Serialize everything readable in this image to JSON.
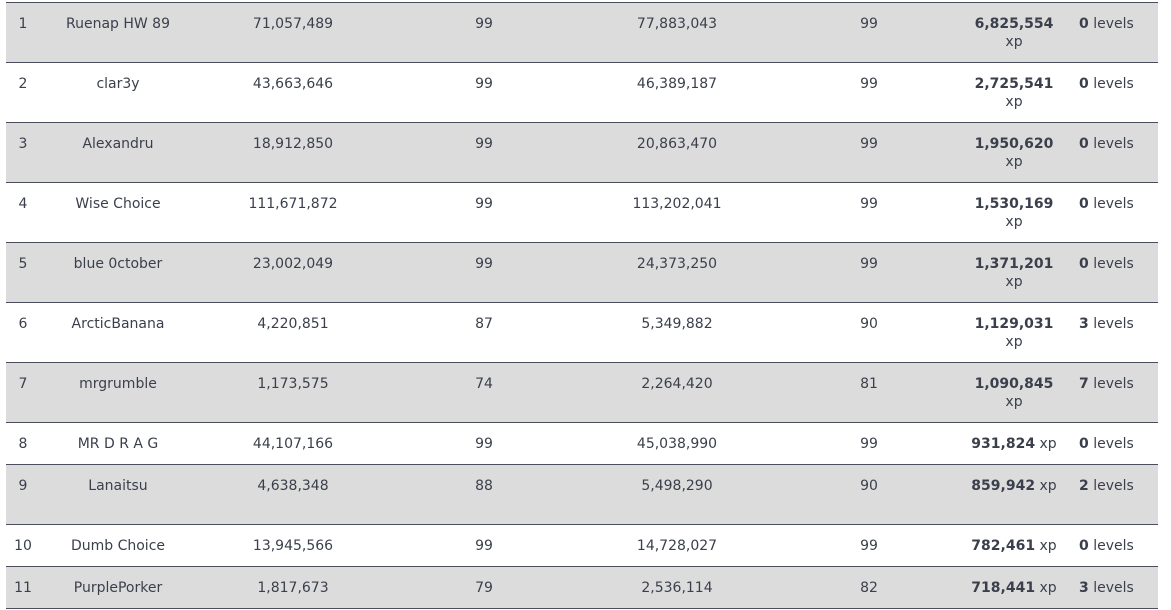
{
  "leaderboard": {
    "xp_unit": "xp",
    "levels_unit": "levels",
    "rows": [
      {
        "rank": "1",
        "name": "Ruenap HW 89",
        "start_xp": "71,057,489",
        "start_level": "99",
        "end_xp": "77,883,043",
        "end_level": "99",
        "gained_xp": "6,825,554",
        "levels_gained": "0"
      },
      {
        "rank": "2",
        "name": "clar3y",
        "start_xp": "43,663,646",
        "start_level": "99",
        "end_xp": "46,389,187",
        "end_level": "99",
        "gained_xp": "2,725,541",
        "levels_gained": "0"
      },
      {
        "rank": "3",
        "name": "Alexandru",
        "start_xp": "18,912,850",
        "start_level": "99",
        "end_xp": "20,863,470",
        "end_level": "99",
        "gained_xp": "1,950,620",
        "levels_gained": "0"
      },
      {
        "rank": "4",
        "name": "Wise Choice",
        "start_xp": "111,671,872",
        "start_level": "99",
        "end_xp": "113,202,041",
        "end_level": "99",
        "gained_xp": "1,530,169",
        "levels_gained": "0"
      },
      {
        "rank": "5",
        "name": "blue 0ctober",
        "start_xp": "23,002,049",
        "start_level": "99",
        "end_xp": "24,373,250",
        "end_level": "99",
        "gained_xp": "1,371,201",
        "levels_gained": "0"
      },
      {
        "rank": "6",
        "name": "ArcticBanana",
        "start_xp": "4,220,851",
        "start_level": "87",
        "end_xp": "5,349,882",
        "end_level": "90",
        "gained_xp": "1,129,031",
        "levels_gained": "3"
      },
      {
        "rank": "7",
        "name": "mrgrumble",
        "start_xp": "1,173,575",
        "start_level": "74",
        "end_xp": "2,264,420",
        "end_level": "81",
        "gained_xp": "1,090,845",
        "levels_gained": "7"
      },
      {
        "rank": "8",
        "name": "MR D R A G",
        "start_xp": "44,107,166",
        "start_level": "99",
        "end_xp": "45,038,990",
        "end_level": "99",
        "gained_xp": "931,824",
        "levels_gained": "0"
      },
      {
        "rank": "9",
        "name": "Lanaitsu",
        "start_xp": "4,638,348",
        "start_level": "88",
        "end_xp": "5,498,290",
        "end_level": "90",
        "gained_xp": "859,942",
        "levels_gained": "2"
      },
      {
        "rank": "10",
        "name": "Dumb Choice",
        "start_xp": "13,945,566",
        "start_level": "99",
        "end_xp": "14,728,027",
        "end_level": "99",
        "gained_xp": "782,461",
        "levels_gained": "0"
      },
      {
        "rank": "11",
        "name": "PurplePorker",
        "start_xp": "1,817,673",
        "start_level": "79",
        "end_xp": "2,536,114",
        "end_level": "82",
        "gained_xp": "718,441",
        "levels_gained": "3"
      }
    ]
  },
  "colors": {
    "row_alt": "#dcdcdc",
    "row_plain": "#ffffff",
    "divider": "#4a4e5c",
    "text": "#3a3f4b"
  }
}
